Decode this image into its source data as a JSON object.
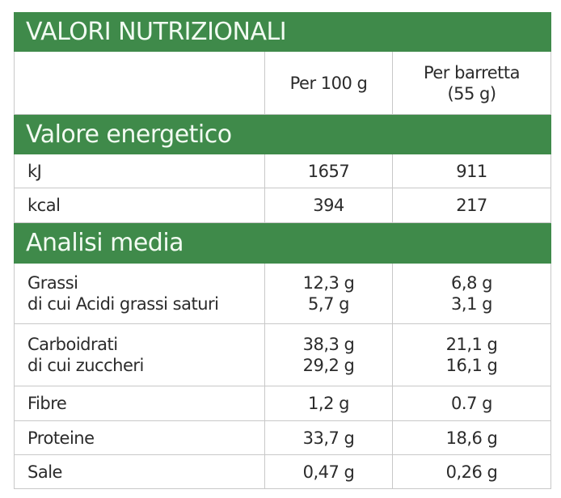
{
  "title": "VALORI NUTRIZIONALI",
  "columns": {
    "per100": "Per 100 g",
    "perBar_line1": "Per barretta",
    "perBar_line2": "(55 g)"
  },
  "sections": {
    "energy": {
      "title": "Valore energetico",
      "rows": [
        {
          "label": "kJ",
          "per100": "1657",
          "perBar": "911"
        },
        {
          "label": "kcal",
          "per100": "394",
          "perBar": "217"
        }
      ]
    },
    "analysis": {
      "title": "Analisi media",
      "rows": [
        {
          "label": "Grassi",
          "sub": "di cui Acidi grassi saturi",
          "per100": "12,3 g",
          "per100_sub": "5,7 g",
          "perBar": "6,8 g",
          "perBar_sub": "3,1 g"
        },
        {
          "label": "Carboidrati",
          "sub": "di cui zuccheri",
          "per100": "38,3 g",
          "per100_sub": "29,2 g",
          "perBar": "21,1 g",
          "perBar_sub": "16,1 g"
        },
        {
          "label": "Fibre",
          "per100": "1,2 g",
          "perBar": "0.7 g"
        },
        {
          "label": "Proteine",
          "per100": "33,7 g",
          "perBar": "18,6 g"
        },
        {
          "label": "Sale",
          "per100": "0,47 g",
          "perBar": "0,26 g"
        }
      ]
    }
  },
  "colors": {
    "accent": "#3f8a4a",
    "border": "#c8c8c8"
  }
}
